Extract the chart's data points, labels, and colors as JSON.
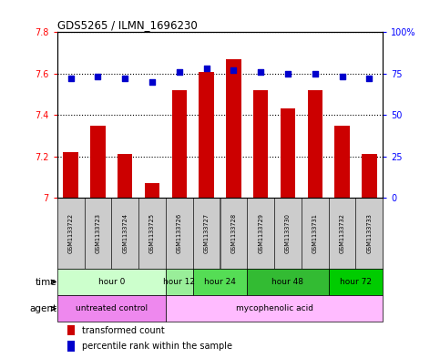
{
  "title": "GDS5265 / ILMN_1696230",
  "samples": [
    "GSM1133722",
    "GSM1133723",
    "GSM1133724",
    "GSM1133725",
    "GSM1133726",
    "GSM1133727",
    "GSM1133728",
    "GSM1133729",
    "GSM1133730",
    "GSM1133731",
    "GSM1133732",
    "GSM1133733"
  ],
  "bar_values": [
    7.22,
    7.35,
    7.21,
    7.07,
    7.52,
    7.61,
    7.67,
    7.52,
    7.43,
    7.52,
    7.35,
    7.21
  ],
  "dot_values": [
    72,
    73,
    72,
    70,
    76,
    78,
    77,
    76,
    75,
    75,
    73,
    72
  ],
  "bar_color": "#cc0000",
  "dot_color": "#0000cc",
  "ylim_left": [
    7.0,
    7.8
  ],
  "yticks_left": [
    7.0,
    7.2,
    7.4,
    7.6,
    7.8
  ],
  "ytick_labels_left": [
    "7",
    "7.2",
    "7.4",
    "7.6",
    "7.8"
  ],
  "yticks_right": [
    0,
    25,
    50,
    75,
    100
  ],
  "ytick_labels_right": [
    "0",
    "25",
    "50",
    "75",
    "100%"
  ],
  "time_groups": [
    {
      "label": "hour 0",
      "start": 0,
      "end": 3,
      "color": "#ccffcc"
    },
    {
      "label": "hour 12",
      "start": 4,
      "end": 4,
      "color": "#99ee99"
    },
    {
      "label": "hour 24",
      "start": 5,
      "end": 6,
      "color": "#55dd55"
    },
    {
      "label": "hour 48",
      "start": 7,
      "end": 9,
      "color": "#33bb33"
    },
    {
      "label": "hour 72",
      "start": 10,
      "end": 11,
      "color": "#00cc00"
    }
  ],
  "agent_groups": [
    {
      "label": "untreated control",
      "start": 0,
      "end": 3,
      "color": "#ee88ee"
    },
    {
      "label": "mycophenolic acid",
      "start": 4,
      "end": 11,
      "color": "#ffbbff"
    }
  ],
  "sample_bg": "#cccccc",
  "legend_bar_label": "transformed count",
  "legend_dot_label": "percentile rank within the sample",
  "xlabel_time": "time",
  "xlabel_agent": "agent"
}
